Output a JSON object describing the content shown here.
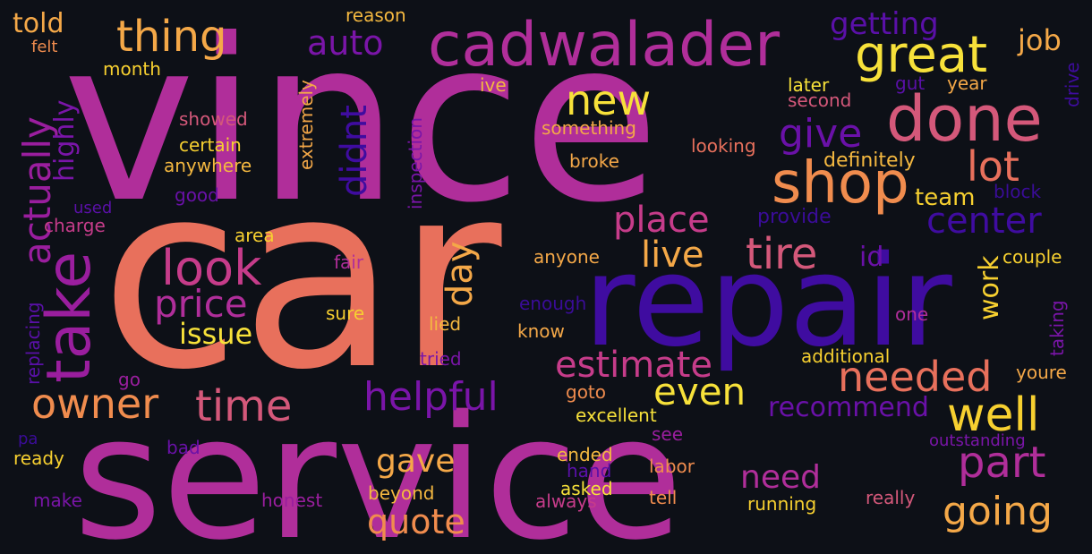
{
  "words": [
    {
      "text": "vince",
      "color": "#b02e9a"
    },
    {
      "text": "car",
      "color": "#e8705c"
    },
    {
      "text": "service",
      "color": "#b02e9a"
    },
    {
      "text": "repair",
      "color": "#3f0ca0"
    },
    {
      "text": "cadwalader",
      "color": "#b02e9a"
    },
    {
      "text": "done",
      "color": "#d4587a"
    },
    {
      "text": "shop",
      "color": "#f08c4e"
    },
    {
      "text": "great",
      "color": "#f7e13a"
    },
    {
      "text": "take",
      "color": "#9a1e9e"
    },
    {
      "text": "look",
      "color": "#c63c8a"
    },
    {
      "text": "thing",
      "color": "#f4a848"
    },
    {
      "text": "actually",
      "color": "#9a1e9e"
    },
    {
      "text": "price",
      "color": "#b02e9a"
    },
    {
      "text": "new",
      "color": "#f7e13a"
    },
    {
      "text": "give",
      "color": "#6a11a8"
    },
    {
      "text": "lot",
      "color": "#e8705c"
    },
    {
      "text": "auto",
      "color": "#7a15a8"
    },
    {
      "text": "didnt",
      "color": "#3f0ca0"
    },
    {
      "text": "place",
      "color": "#c63c8a"
    },
    {
      "text": "center",
      "color": "#3f0ca0"
    },
    {
      "text": "tire",
      "color": "#d4587a"
    },
    {
      "text": "live",
      "color": "#f4a848"
    },
    {
      "text": "day",
      "color": "#f4a848"
    },
    {
      "text": "owner",
      "color": "#f08c4e"
    },
    {
      "text": "time",
      "color": "#d4587a"
    },
    {
      "text": "helpful",
      "color": "#7a15a8"
    },
    {
      "text": "estimate",
      "color": "#c63c8a"
    },
    {
      "text": "even",
      "color": "#f7e13a"
    },
    {
      "text": "needed",
      "color": "#e8705c"
    },
    {
      "text": "well",
      "color": "#f7d030"
    },
    {
      "text": "part",
      "color": "#b02e9a"
    },
    {
      "text": "going",
      "color": "#f4a848"
    },
    {
      "text": "need",
      "color": "#b02e9a"
    },
    {
      "text": "quote",
      "color": "#f08c4e"
    },
    {
      "text": "gave",
      "color": "#f4a848"
    },
    {
      "text": "issue",
      "color": "#f7e13a"
    },
    {
      "text": "getting",
      "color": "#5a10a8"
    },
    {
      "text": "job",
      "color": "#f4a848"
    },
    {
      "text": "work",
      "color": "#f7d030"
    },
    {
      "text": "recommend",
      "color": "#6a11a8"
    },
    {
      "text": "told",
      "color": "#f4a848"
    },
    {
      "text": "highly",
      "color": "#7a15a8"
    },
    {
      "text": "team",
      "color": "#f7d030"
    },
    {
      "text": "definitely",
      "color": "#f4b840"
    },
    {
      "text": "provide",
      "color": "#3a0c98"
    },
    {
      "text": "id",
      "color": "#6a11a8"
    },
    {
      "text": "reason",
      "color": "#f4b840"
    },
    {
      "text": "felt",
      "color": "#f08c4e"
    },
    {
      "text": "month",
      "color": "#f7d030"
    },
    {
      "text": "ive",
      "color": "#f4b840"
    },
    {
      "text": "later",
      "color": "#f7e13a"
    },
    {
      "text": "second",
      "color": "#d4587a"
    },
    {
      "text": "gut",
      "color": "#5a10a8"
    },
    {
      "text": "year",
      "color": "#f4a848"
    },
    {
      "text": "drive",
      "color": "#3f0ca0"
    },
    {
      "text": "extremely",
      "color": "#f4a848"
    },
    {
      "text": "showed",
      "color": "#d4587a"
    },
    {
      "text": "certain",
      "color": "#f7d030"
    },
    {
      "text": "anywhere",
      "color": "#f4b840"
    },
    {
      "text": "inspection",
      "color": "#7a15a8"
    },
    {
      "text": "something",
      "color": "#f4a848"
    },
    {
      "text": "looking",
      "color": "#e8705c"
    },
    {
      "text": "broke",
      "color": "#f4a848"
    },
    {
      "text": "block",
      "color": "#3a0c98"
    },
    {
      "text": "used",
      "color": "#5a10a8"
    },
    {
      "text": "good",
      "color": "#6a11a8"
    },
    {
      "text": "charge",
      "color": "#c63c8a"
    },
    {
      "text": "area",
      "color": "#f7d030"
    },
    {
      "text": "fair",
      "color": "#b02e9a"
    },
    {
      "text": "anyone",
      "color": "#f4a848"
    },
    {
      "text": "couple",
      "color": "#f7d030"
    },
    {
      "text": "replacing",
      "color": "#5a10a8"
    },
    {
      "text": "sure",
      "color": "#f7d030"
    },
    {
      "text": "enough",
      "color": "#3a0c98"
    },
    {
      "text": "lied",
      "color": "#f4b840"
    },
    {
      "text": "know",
      "color": "#f4a848"
    },
    {
      "text": "one",
      "color": "#b02e9a"
    },
    {
      "text": "taking",
      "color": "#7a15a8"
    },
    {
      "text": "tried",
      "color": "#7a15a8"
    },
    {
      "text": "additional",
      "color": "#f7d030"
    },
    {
      "text": "youre",
      "color": "#f4a848"
    },
    {
      "text": "go",
      "color": "#9a1e9e"
    },
    {
      "text": "goto",
      "color": "#f08c4e"
    },
    {
      "text": "excellent",
      "color": "#f7e13a"
    },
    {
      "text": "see",
      "color": "#9a1e9e"
    },
    {
      "text": "outstanding",
      "color": "#7a15a8"
    },
    {
      "text": "pa",
      "color": "#3a0c98"
    },
    {
      "text": "bad",
      "color": "#6a11a8"
    },
    {
      "text": "ready",
      "color": "#f7d030"
    },
    {
      "text": "ended",
      "color": "#f4b840"
    },
    {
      "text": "hand",
      "color": "#5a10a8"
    },
    {
      "text": "labor",
      "color": "#f08c4e"
    },
    {
      "text": "asked",
      "color": "#f7e13a"
    },
    {
      "text": "make",
      "color": "#7a15a8"
    },
    {
      "text": "honest",
      "color": "#9a1e9e"
    },
    {
      "text": "beyond",
      "color": "#f4b840"
    },
    {
      "text": "always",
      "color": "#c63c8a"
    },
    {
      "text": "tell",
      "color": "#f08c4e"
    },
    {
      "text": "running",
      "color": "#f7d030"
    },
    {
      "text": "really",
      "color": "#d4587a"
    }
  ]
}
